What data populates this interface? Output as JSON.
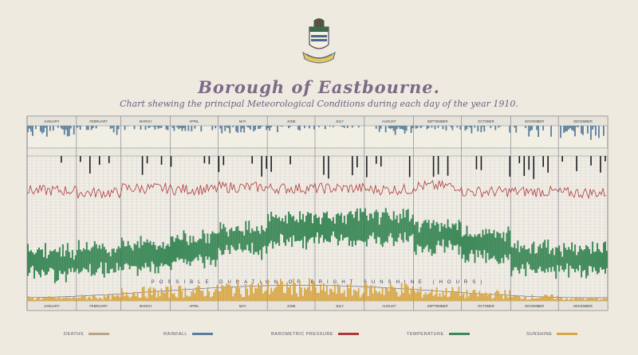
{
  "chart_data": {
    "type": "bar",
    "title": "Borough of Eastbourne.",
    "subtitle": "Chart shewing the principal Meteorological Conditions during each day of the year 1910.",
    "months": [
      "JANUARY",
      "FEBRUARY",
      "MARCH",
      "APRIL",
      "MAY",
      "JUNE",
      "JULY",
      "AUGUST",
      "SEPTEMBER",
      "OCTOBER",
      "NOVEMBER",
      "DECEMBER"
    ],
    "month_days": [
      31,
      28,
      31,
      30,
      31,
      30,
      31,
      31,
      30,
      31,
      30,
      31
    ],
    "annotation": "POSSIBLE DURATION OF BRIGHT SUNSHINE (HOURS)",
    "legend": [
      {
        "label": "DEATHS",
        "color": "#b8a888"
      },
      {
        "label": "RAINFALL",
        "color": "#5a7f9c"
      },
      {
        "label": "BAROMETRIC PRESSURE",
        "color": "#b03a3a"
      },
      {
        "label": "TEMPERATURE",
        "color": "#3f8a5a"
      },
      {
        "label": "SUNSHINE",
        "color": "#d8a848"
      }
    ],
    "series": [
      {
        "name": "RAINFALL",
        "color": "#5a7f9c",
        "monthly_mean": [
          0.12,
          0.1,
          0.05,
          0.06,
          0.08,
          0.07,
          0.04,
          0.1,
          0.05,
          0.08,
          0.14,
          0.16
        ]
      },
      {
        "name": "BAROMETRIC PRESSURE",
        "color": "#b03a3a",
        "monthly_mean": [
          29.85,
          29.75,
          29.95,
          29.9,
          30.0,
          29.95,
          29.95,
          29.9,
          30.05,
          29.8,
          29.8,
          29.75
        ]
      },
      {
        "name": "TEMPERATURE",
        "color": "#3f8a5a",
        "monthly_mean": [
          40,
          42,
          44,
          48,
          54,
          60,
          61,
          61,
          56,
          50,
          42,
          42
        ]
      },
      {
        "name": "SUNSHINE",
        "color": "#d8a848",
        "monthly_mean": [
          1.5,
          2.0,
          4.5,
          5.0,
          6.5,
          7.0,
          5.5,
          6.0,
          4.5,
          3.5,
          2.0,
          1.2
        ]
      }
    ]
  }
}
